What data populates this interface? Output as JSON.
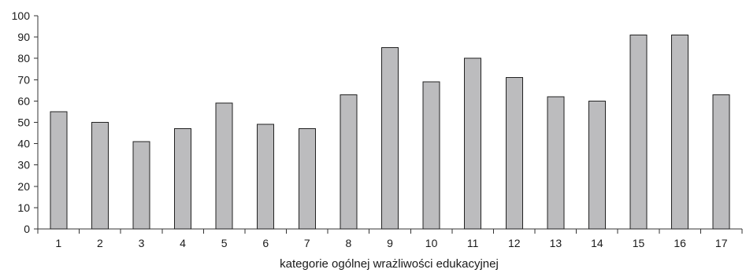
{
  "chart_data": {
    "type": "bar",
    "categories": [
      "1",
      "2",
      "3",
      "4",
      "5",
      "6",
      "7",
      "8",
      "9",
      "10",
      "11",
      "12",
      "13",
      "14",
      "15",
      "16",
      "17"
    ],
    "values": [
      55,
      50,
      41,
      47,
      59,
      49,
      47,
      63,
      85,
      69,
      80,
      71,
      62,
      60,
      91,
      91,
      63
    ],
    "title": "",
    "xlabel": "kategorie ogólnej wrażliwości edukacyjnej",
    "ylabel": "",
    "ylim": [
      0,
      100
    ],
    "yticks": [
      "0",
      "10",
      "20",
      "30",
      "40",
      "50",
      "60",
      "70",
      "80",
      "90",
      "100"
    ],
    "grid": false,
    "legend": "none",
    "bar_color": "#bcbcbe",
    "bar_edge_color": "#222222"
  }
}
